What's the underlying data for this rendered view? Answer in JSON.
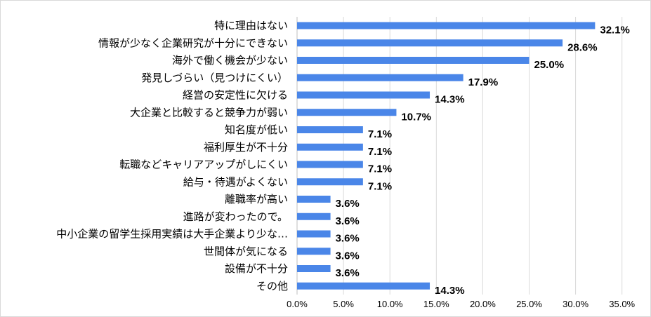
{
  "chart_data": {
    "type": "bar",
    "orientation": "horizontal",
    "categories": [
      "特に理由はない",
      "情報が少なく企業研究が十分にできない",
      "海外で働く機会が少ない",
      "発見しづらい（見つけにくい）",
      "経営の安定性に欠ける",
      "大企業と比較すると競争力が弱い",
      "知名度が低い",
      "福利厚生が不十分",
      "転職などキャリアアップがしにくい",
      "給与・待遇がよくない",
      "離職率が高い",
      "進路が変わったので。",
      "中小企業の留学生採用実績は大手企業より少な…",
      "世間体が気になる",
      "設備が不十分",
      "その他"
    ],
    "values": [
      32.1,
      28.6,
      25.0,
      17.9,
      14.3,
      10.7,
      7.1,
      7.1,
      7.1,
      7.1,
      3.6,
      3.6,
      3.6,
      3.6,
      3.6,
      14.3
    ],
    "value_labels": [
      "32.1%",
      "28.6%",
      "25.0%",
      "17.9%",
      "14.3%",
      "10.7%",
      "7.1%",
      "7.1%",
      "7.1%",
      "7.1%",
      "3.6%",
      "3.6%",
      "3.6%",
      "3.6%",
      "3.6%",
      "14.3%"
    ],
    "x_ticks": [
      0,
      5,
      10,
      15,
      20,
      25,
      30,
      35
    ],
    "x_tick_labels": [
      "0.0%",
      "5.0%",
      "10.0%",
      "15.0%",
      "20.0%",
      "25.0%",
      "30.0%",
      "35.0%"
    ],
    "xlim": [
      0,
      35
    ],
    "grid": true,
    "legend": "none",
    "title": "",
    "xlabel": "",
    "ylabel": "",
    "bar_color": "#4a86e8"
  }
}
